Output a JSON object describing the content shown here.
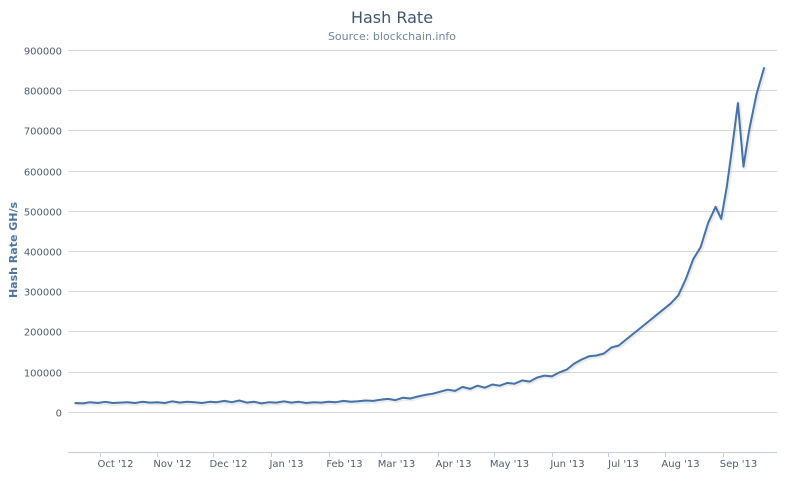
{
  "chart_data": {
    "type": "line",
    "title": "Hash Rate",
    "subtitle": "Source: blockchain.info",
    "xlabel": "",
    "ylabel": "Hash Rate GH/s",
    "ylim": [
      -100000,
      900000
    ],
    "yticks": [
      0,
      100000,
      200000,
      300000,
      400000,
      500000,
      600000,
      700000,
      800000,
      900000
    ],
    "x_start": "2012-09-14",
    "x_end": "2013-09-30",
    "x_ticks": [
      {
        "date": "2012-10-01",
        "label": "Oct '12"
      },
      {
        "date": "2012-11-01",
        "label": "Nov '12"
      },
      {
        "date": "2012-12-01",
        "label": "Dec '12"
      },
      {
        "date": "2013-01-01",
        "label": "Jan '13"
      },
      {
        "date": "2013-02-01",
        "label": "Feb '13"
      },
      {
        "date": "2013-03-01",
        "label": "Mar '13"
      },
      {
        "date": "2013-04-01",
        "label": "Apr '13"
      },
      {
        "date": "2013-05-01",
        "label": "May '13"
      },
      {
        "date": "2013-06-01",
        "label": "Jun '13"
      },
      {
        "date": "2013-07-01",
        "label": "Jul '13"
      },
      {
        "date": "2013-08-01",
        "label": "Aug '13"
      },
      {
        "date": "2013-09-01",
        "label": "Sep '13"
      }
    ],
    "grid": true,
    "legend": "none",
    "series": [
      {
        "color": "#4572a7",
        "points": [
          [
            "2012-09-18",
            22000
          ],
          [
            "2012-09-22",
            21000
          ],
          [
            "2012-09-26",
            24000
          ],
          [
            "2012-09-30",
            22000
          ],
          [
            "2012-10-04",
            25000
          ],
          [
            "2012-10-08",
            22000
          ],
          [
            "2012-10-12",
            23000
          ],
          [
            "2012-10-16",
            24000
          ],
          [
            "2012-10-20",
            22000
          ],
          [
            "2012-10-24",
            25000
          ],
          [
            "2012-10-28",
            23000
          ],
          [
            "2012-11-01",
            24000
          ],
          [
            "2012-11-05",
            22000
          ],
          [
            "2012-11-09",
            26000
          ],
          [
            "2012-11-13",
            23000
          ],
          [
            "2012-11-17",
            25000
          ],
          [
            "2012-11-21",
            24000
          ],
          [
            "2012-11-25",
            22000
          ],
          [
            "2012-11-29",
            25000
          ],
          [
            "2012-12-03",
            24000
          ],
          [
            "2012-12-07",
            27000
          ],
          [
            "2012-12-11",
            24000
          ],
          [
            "2012-12-15",
            28000
          ],
          [
            "2012-12-19",
            23000
          ],
          [
            "2012-12-23",
            25000
          ],
          [
            "2012-12-27",
            21000
          ],
          [
            "2012-12-31",
            24000
          ],
          [
            "2013-01-04",
            23000
          ],
          [
            "2013-01-08",
            26000
          ],
          [
            "2013-01-12",
            23000
          ],
          [
            "2013-01-16",
            25000
          ],
          [
            "2013-01-20",
            22000
          ],
          [
            "2013-01-24",
            24000
          ],
          [
            "2013-01-28",
            23000
          ],
          [
            "2013-02-01",
            25000
          ],
          [
            "2013-02-05",
            24000
          ],
          [
            "2013-02-09",
            27000
          ],
          [
            "2013-02-13",
            25000
          ],
          [
            "2013-02-17",
            26000
          ],
          [
            "2013-02-21",
            28000
          ],
          [
            "2013-02-25",
            27000
          ],
          [
            "2013-03-01",
            30000
          ],
          [
            "2013-03-05",
            32000
          ],
          [
            "2013-03-09",
            29000
          ],
          [
            "2013-03-13",
            35000
          ],
          [
            "2013-03-17",
            33000
          ],
          [
            "2013-03-21",
            38000
          ],
          [
            "2013-03-25",
            42000
          ],
          [
            "2013-03-29",
            45000
          ],
          [
            "2013-04-02",
            50000
          ],
          [
            "2013-04-06",
            55000
          ],
          [
            "2013-04-10",
            52000
          ],
          [
            "2013-04-14",
            62000
          ],
          [
            "2013-04-18",
            57000
          ],
          [
            "2013-04-22",
            65000
          ],
          [
            "2013-04-26",
            60000
          ],
          [
            "2013-04-30",
            68000
          ],
          [
            "2013-05-04",
            65000
          ],
          [
            "2013-05-08",
            72000
          ],
          [
            "2013-05-12",
            70000
          ],
          [
            "2013-05-16",
            78000
          ],
          [
            "2013-05-20",
            75000
          ],
          [
            "2013-05-24",
            85000
          ],
          [
            "2013-05-28",
            90000
          ],
          [
            "2013-06-01",
            88000
          ],
          [
            "2013-06-05",
            98000
          ],
          [
            "2013-06-09",
            105000
          ],
          [
            "2013-06-13",
            120000
          ],
          [
            "2013-06-17",
            130000
          ],
          [
            "2013-06-21",
            138000
          ],
          [
            "2013-06-25",
            140000
          ],
          [
            "2013-06-29",
            145000
          ],
          [
            "2013-07-03",
            160000
          ],
          [
            "2013-07-07",
            165000
          ],
          [
            "2013-07-11",
            180000
          ],
          [
            "2013-07-15",
            195000
          ],
          [
            "2013-07-19",
            210000
          ],
          [
            "2013-07-23",
            225000
          ],
          [
            "2013-07-27",
            240000
          ],
          [
            "2013-07-31",
            255000
          ],
          [
            "2013-08-04",
            270000
          ],
          [
            "2013-08-08",
            290000
          ],
          [
            "2013-08-12",
            330000
          ],
          [
            "2013-08-16",
            380000
          ],
          [
            "2013-08-20",
            410000
          ],
          [
            "2013-08-24",
            470000
          ],
          [
            "2013-08-28",
            510000
          ],
          [
            "2013-08-31",
            480000
          ],
          [
            "2013-09-03",
            560000
          ],
          [
            "2013-09-06",
            660000
          ],
          [
            "2013-09-09",
            768000
          ],
          [
            "2013-09-12",
            610000
          ],
          [
            "2013-09-15",
            700000
          ],
          [
            "2013-09-19",
            790000
          ],
          [
            "2013-09-23",
            855000
          ]
        ]
      }
    ]
  }
}
